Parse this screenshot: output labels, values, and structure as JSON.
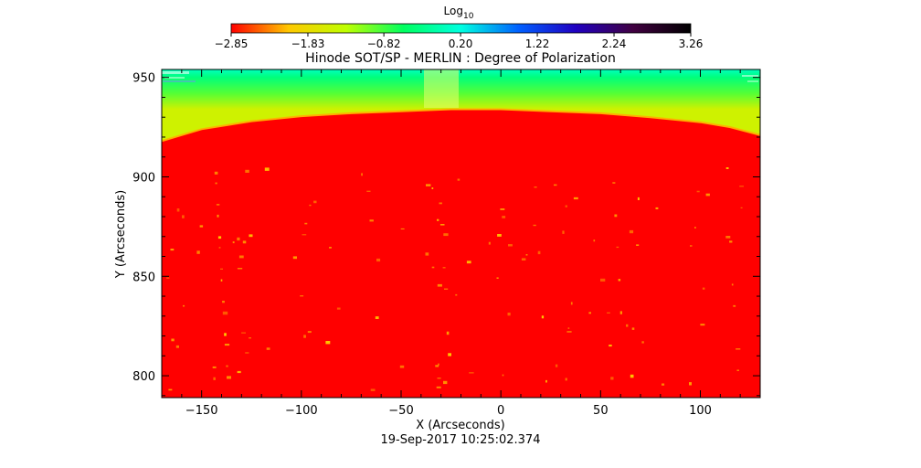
{
  "chart_data": {
    "type": "heatmap",
    "title": "Hinode SOT/SP - MERLIN : Degree of Polarization",
    "xlabel": "X (Arcseconds)",
    "ylabel": "Y (Arcseconds)",
    "footer": "19-Sep-2017 10:25:02.374",
    "xlim": [
      -170,
      130
    ],
    "ylim": [
      789,
      954
    ],
    "x_ticks": [
      -150,
      -100,
      -50,
      0,
      50,
      100
    ],
    "x_tick_labels": [
      "−150",
      "−100",
      "−50",
      "0",
      "50",
      "100"
    ],
    "y_ticks": [
      800,
      850,
      900,
      950
    ],
    "y_tick_labels": [
      "800",
      "850",
      "900",
      "950"
    ],
    "colorbar": {
      "label_base": "Log",
      "label_sub": "10",
      "range": [
        -2.85,
        3.26
      ],
      "ticks": [
        -2.85,
        -1.83,
        -0.82,
        0.2,
        1.22,
        2.24,
        3.26
      ],
      "tick_labels": [
        "−2.85",
        "−1.83",
        "−0.82",
        "0.20",
        "1.22",
        "2.24",
        "3.26"
      ],
      "colors": [
        "#ff0000",
        "#ffc800",
        "#bfff00",
        "#00ff60",
        "#00ffe0",
        "#0060ff",
        "#2000c0",
        "#400040",
        "#000000"
      ]
    },
    "limb_profile": [
      [
        -170,
        918
      ],
      [
        -150,
        924
      ],
      [
        -125,
        928
      ],
      [
        -100,
        930.5
      ],
      [
        -75,
        932
      ],
      [
        -50,
        933
      ],
      [
        -25,
        934
      ],
      [
        0,
        934
      ],
      [
        25,
        933
      ],
      [
        50,
        932
      ],
      [
        75,
        930
      ],
      [
        100,
        927.5
      ],
      [
        115,
        925
      ],
      [
        130,
        921
      ]
    ],
    "disk_value": -2.85,
    "offlimb_values": [
      [
        0,
        -1.5
      ],
      [
        0.4,
        -0.9
      ],
      [
        0.8,
        -0.4
      ],
      [
        1.0,
        0.0
      ]
    ]
  }
}
